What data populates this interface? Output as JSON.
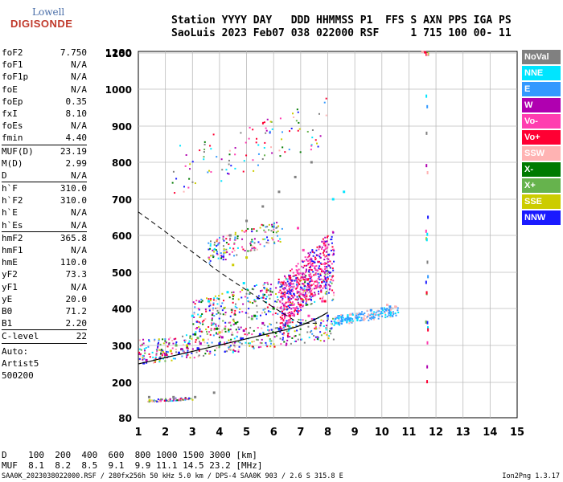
{
  "logo": {
    "line1": "Lowell",
    "line2": "DIGISONDE"
  },
  "header": {
    "line1": "Station YYYY DAY   DDD HHMMSS P1  FFS S AXN PPS IGA PS",
    "line2": "SaoLuis 2023 Feb07 038 022000 RSF     1 715 100 00- 11"
  },
  "params": [
    {
      "label": "foF2",
      "value": "7.750"
    },
    {
      "label": "foF1",
      "value": "N/A"
    },
    {
      "label": "foF1p",
      "value": "N/A"
    },
    {
      "label": "foE",
      "value": "N/A"
    },
    {
      "label": "foEp",
      "value": "0.35"
    },
    {
      "label": "fxI",
      "value": "8.10"
    },
    {
      "label": "foEs",
      "value": "N/A"
    },
    {
      "label": "fmin",
      "value": "4.40"
    },
    {
      "sep": true
    },
    {
      "label": "MUF(D)",
      "value": "23.19"
    },
    {
      "label": "M(D)",
      "value": "2.99"
    },
    {
      "label": "D",
      "value": "N/A"
    },
    {
      "sep": true
    },
    {
      "label": "h`F",
      "value": "310.0"
    },
    {
      "label": "h`F2",
      "value": "310.0"
    },
    {
      "label": "h`E",
      "value": "N/A"
    },
    {
      "label": "h`Es",
      "value": "N/A"
    },
    {
      "sep": true
    },
    {
      "label": "hmF2",
      "value": "365.8"
    },
    {
      "label": "hmF1",
      "value": "N/A"
    },
    {
      "label": "hmE",
      "value": "110.0"
    },
    {
      "label": "yF2",
      "value": "73.3"
    },
    {
      "label": "yF1",
      "value": "N/A"
    },
    {
      "label": "yE",
      "value": "20.0"
    },
    {
      "label": "B0",
      "value": "71.2"
    },
    {
      "label": "B1",
      "value": "2.20"
    },
    {
      "sep": true
    },
    {
      "label": "C-level",
      "value": "22"
    },
    {
      "sep": true
    }
  ],
  "auto": {
    "line1": "Auto:",
    "line2": "Artist5",
    "line3": "500200"
  },
  "legend": [
    {
      "label": "NoVal",
      "color": "#808080"
    },
    {
      "label": "NNE",
      "color": "#00e5ff"
    },
    {
      "label": "E",
      "color": "#3399ff"
    },
    {
      "label": "W",
      "color": "#b000b0"
    },
    {
      "label": "Vo-",
      "color": "#ff3db0"
    },
    {
      "label": "Vo+",
      "color": "#ff0033"
    },
    {
      "label": "SSW",
      "color": "#ffb3b3"
    },
    {
      "label": "X-",
      "color": "#007a00"
    },
    {
      "label": "X+",
      "color": "#66b34d"
    },
    {
      "label": "SSE",
      "color": "#cccc00"
    },
    {
      "label": "NNW",
      "color": "#1a1aff"
    }
  ],
  "bottom": {
    "line1": "D    100  200  400  600  800 1000 1500 3000 [km]",
    "line2": "MUF  8.1  8.2  8.5  9.1  9.9 11.1 14.5 23.2 [MHz]"
  },
  "footer": {
    "left": "SAA0K_2023038022000.RSF / 280fx256h 50 kHz 5.0 km / DPS-4 SAA0K 903 / 2.6 S 315.8 E",
    "right": "Ion2Png 1.3.17"
  },
  "chart_data": {
    "type": "scatter",
    "title": "",
    "xlabel": "",
    "ylabel": "",
    "x_ticks": [
      "1",
      "2",
      "3",
      "4",
      "5",
      "6",
      "7",
      "8",
      "9",
      "10",
      "11",
      "12",
      "13",
      "14",
      "15"
    ],
    "y_ticks": [
      "80",
      "200",
      "300",
      "400",
      "500",
      "600",
      "700",
      "800",
      "900",
      "1000",
      "1100",
      "1280"
    ],
    "xlim": [
      1,
      15
    ],
    "y_tick_values": [
      80,
      200,
      300,
      400,
      500,
      600,
      700,
      800,
      900,
      1000,
      1100,
      1280
    ],
    "grid": true,
    "series": [
      {
        "name": "NNW",
        "color": "#1a1aff",
        "x": [
          1.2,
          1.8,
          2.5,
          3.2,
          4.0,
          4.8,
          5.5,
          6.2,
          7.0,
          7.5,
          8.0
        ],
        "y": [
          252,
          265,
          280,
          292,
          305,
          318,
          330,
          345,
          360,
          370,
          380
        ]
      },
      {
        "name": "W",
        "color": "#b000b0",
        "x": [
          1.3,
          2.0,
          2.6,
          3.3,
          4.1,
          4.9,
          5.6,
          6.4
        ],
        "y": [
          260,
          275,
          290,
          305,
          322,
          340,
          360,
          385
        ]
      },
      {
        "name": "Vo-",
        "color": "#ff3db0",
        "x": [
          6.5,
          6.8,
          7.0,
          7.2,
          7.4,
          7.6,
          7.8,
          7.1,
          6.9,
          7.3
        ],
        "y": [
          360,
          400,
          440,
          480,
          520,
          460,
          420,
          560,
          620,
          380
        ]
      },
      {
        "name": "E",
        "color": "#3399ff",
        "x": [
          8.4,
          8.8,
          9.2,
          9.6,
          10.0,
          10.3
        ],
        "y": [
          360,
          372,
          385,
          395,
          400,
          405
        ]
      },
      {
        "name": "X-",
        "color": "#007a00",
        "x": [
          3.1,
          3.9,
          4.6,
          5.3,
          6.0
        ],
        "y": [
          330,
          345,
          360,
          380,
          400
        ]
      },
      {
        "name": "NNE",
        "color": "#00e5ff",
        "x": [
          3.0,
          3.6,
          4.3,
          4.9,
          8.2,
          8.6
        ],
        "y": [
          380,
          420,
          445,
          470,
          700,
          720
        ]
      },
      {
        "name": "SSE",
        "color": "#cccc00",
        "x": [
          2.2,
          2.8,
          3.4,
          4.0,
          4.5,
          5.0
        ],
        "y": [
          285,
          300,
          315,
          335,
          520,
          540
        ]
      },
      {
        "name": "Vo+",
        "color": "#ff0033",
        "x": [
          6.6,
          7.0,
          7.4,
          7.9,
          11.6
        ],
        "y": [
          380,
          410,
          440,
          420,
          1180
        ]
      },
      {
        "name": "SSW",
        "color": "#ffb3b3",
        "x": [
          10.2,
          10.5,
          11.5
        ],
        "y": [
          410,
          405,
          1240
        ]
      },
      {
        "name": "X+",
        "color": "#66b34d",
        "x": [
          2.4,
          3.2,
          4.2,
          5.2
        ],
        "y": [
          300,
          320,
          345,
          372
        ]
      },
      {
        "name": "NoVal",
        "color": "#808080",
        "x": [
          1.4,
          2.3,
          3.1,
          3.8,
          4.4,
          5.0,
          5.6,
          6.2,
          6.8,
          7.4
        ],
        "y": [
          150,
          150,
          150,
          165,
          600,
          640,
          680,
          720,
          760,
          800
        ]
      }
    ]
  }
}
